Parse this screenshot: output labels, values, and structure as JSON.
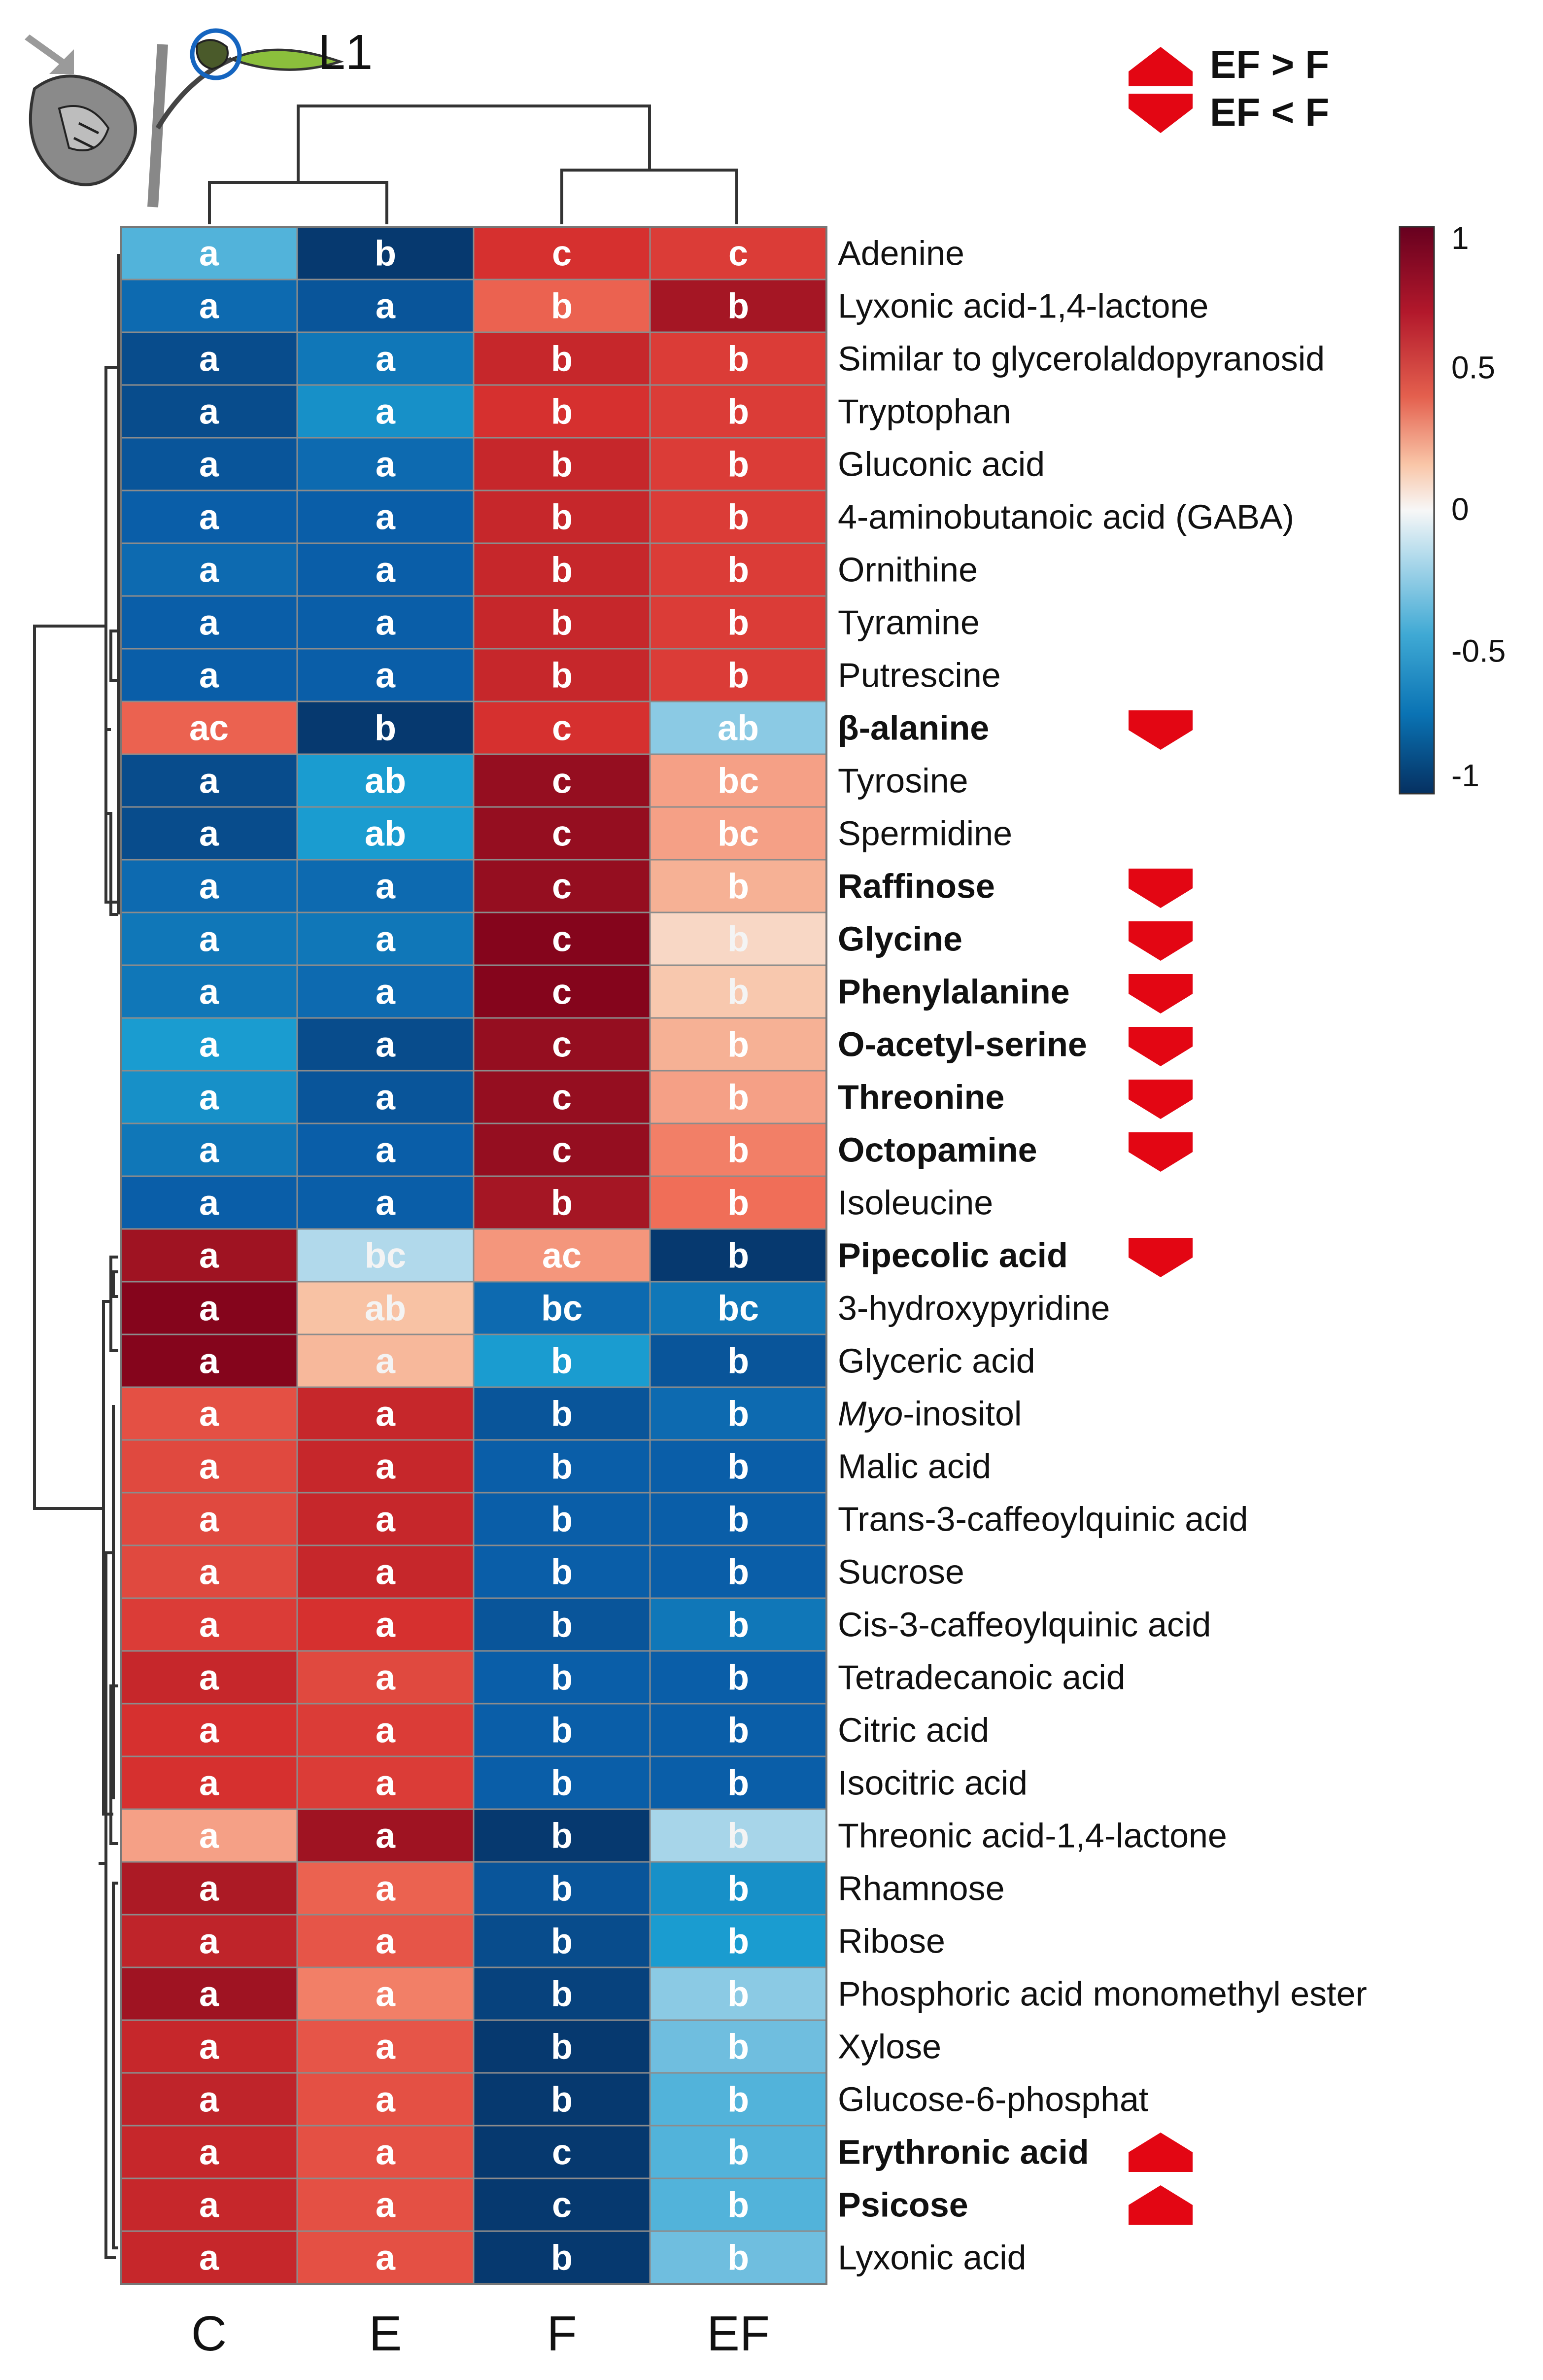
{
  "figure": {
    "panel_label": "L1",
    "icon": "plant-leaf-icon",
    "legend": [
      {
        "symbol": "up-arrow-icon",
        "label": "EF > F"
      },
      {
        "symbol": "down-arrow-icon",
        "label": "EF < F"
      }
    ]
  },
  "chart_data": {
    "type": "heatmap",
    "columns": [
      "C",
      "E",
      "F",
      "EF"
    ],
    "color_scale": {
      "min": -1,
      "max": 1,
      "ticks": [
        {
          "value": 1,
          "label": "1"
        },
        {
          "value": 0.5,
          "label": "0.5"
        },
        {
          "value": 0,
          "label": "0"
        },
        {
          "value": -0.5,
          "label": "-0.5"
        },
        {
          "value": -1,
          "label": "-1"
        }
      ],
      "low_color": "#053061",
      "mid_color": "#f7f7f7",
      "high_color": "#8b0a1e"
    },
    "rows": [
      {
        "name": "Adenine",
        "bold": false,
        "marker": "",
        "values": [
          -0.4,
          -0.95,
          0.75,
          0.7
        ],
        "letters": [
          "a",
          "b",
          "c",
          "c"
        ]
      },
      {
        "name": "Lyxonic acid-1,4-lactone",
        "bold": false,
        "marker": "",
        "values": [
          -0.7,
          -0.8,
          0.55,
          0.9
        ],
        "letters": [
          "a",
          "a",
          "b",
          "b"
        ]
      },
      {
        "name": "Similar to glycerolaldopyranosid",
        "bold": false,
        "marker": "",
        "values": [
          -0.85,
          -0.65,
          0.8,
          0.7
        ],
        "letters": [
          "a",
          "a",
          "b",
          "b"
        ]
      },
      {
        "name": "Tryptophan",
        "bold": false,
        "marker": "",
        "values": [
          -0.85,
          -0.55,
          0.75,
          0.7
        ],
        "letters": [
          "a",
          "a",
          "b",
          "b"
        ]
      },
      {
        "name": "Gluconic acid",
        "bold": false,
        "marker": "",
        "values": [
          -0.8,
          -0.7,
          0.8,
          0.7
        ],
        "letters": [
          "a",
          "a",
          "b",
          "b"
        ]
      },
      {
        "name": "4-aminobutanoic acid (GABA)",
        "bold": false,
        "marker": "",
        "values": [
          -0.75,
          -0.75,
          0.8,
          0.7
        ],
        "letters": [
          "a",
          "a",
          "b",
          "b"
        ]
      },
      {
        "name": "Ornithine",
        "bold": false,
        "marker": "",
        "values": [
          -0.7,
          -0.75,
          0.8,
          0.7
        ],
        "letters": [
          "a",
          "a",
          "b",
          "b"
        ]
      },
      {
        "name": "Tyramine",
        "bold": false,
        "marker": "",
        "values": [
          -0.75,
          -0.75,
          0.8,
          0.7
        ],
        "letters": [
          "a",
          "a",
          "b",
          "b"
        ]
      },
      {
        "name": "Putrescine",
        "bold": false,
        "marker": "",
        "values": [
          -0.75,
          -0.75,
          0.8,
          0.7
        ],
        "letters": [
          "a",
          "a",
          "b",
          "b"
        ]
      },
      {
        "name": "β-alanine",
        "bold": true,
        "marker": "down",
        "values": [
          0.55,
          -0.95,
          0.75,
          -0.3
        ],
        "letters": [
          "ac",
          "b",
          "c",
          "ab"
        ]
      },
      {
        "name": "Tyrosine",
        "bold": false,
        "marker": "",
        "values": [
          -0.85,
          -0.5,
          0.95,
          0.35
        ],
        "letters": [
          "a",
          "ab",
          "c",
          "bc"
        ]
      },
      {
        "name": "Spermidine",
        "bold": false,
        "marker": "",
        "values": [
          -0.85,
          -0.5,
          0.95,
          0.35
        ],
        "letters": [
          "a",
          "ab",
          "c",
          "bc"
        ]
      },
      {
        "name": "Raffinose",
        "bold": true,
        "marker": "down",
        "values": [
          -0.7,
          -0.7,
          0.95,
          0.3
        ],
        "letters": [
          "a",
          "a",
          "c",
          "b"
        ]
      },
      {
        "name": "Glycine",
        "bold": true,
        "marker": "down",
        "values": [
          -0.65,
          -0.65,
          1.0,
          0.15
        ],
        "letters": [
          "a",
          "a",
          "c",
          "b"
        ]
      },
      {
        "name": "Phenylalanine",
        "bold": true,
        "marker": "down",
        "values": [
          -0.65,
          -0.7,
          1.0,
          0.22
        ],
        "letters": [
          "a",
          "a",
          "c",
          "b"
        ]
      },
      {
        "name": "O-acetyl-serine",
        "bold": true,
        "marker": "down",
        "values": [
          -0.5,
          -0.85,
          0.95,
          0.3
        ],
        "letters": [
          "a",
          "a",
          "c",
          "b"
        ]
      },
      {
        "name": "Threonine",
        "bold": true,
        "marker": "down",
        "values": [
          -0.55,
          -0.8,
          0.95,
          0.35
        ],
        "letters": [
          "a",
          "a",
          "c",
          "b"
        ]
      },
      {
        "name": "Octopamine",
        "bold": true,
        "marker": "down",
        "values": [
          -0.65,
          -0.75,
          0.95,
          0.45
        ],
        "letters": [
          "a",
          "a",
          "c",
          "b"
        ]
      },
      {
        "name": "Isoleucine",
        "bold": false,
        "marker": "",
        "values": [
          -0.75,
          -0.75,
          0.9,
          0.5
        ],
        "letters": [
          "a",
          "a",
          "b",
          "b"
        ]
      },
      {
        "name": "Pipecolic acid",
        "bold": true,
        "marker": "down",
        "values": [
          0.92,
          -0.22,
          0.38,
          -0.95
        ],
        "letters": [
          "a",
          "bc",
          "ac",
          "b"
        ]
      },
      {
        "name": "3-hydroxypyridine",
        "bold": false,
        "marker": "",
        "values": [
          1.0,
          0.25,
          -0.7,
          -0.65
        ],
        "letters": [
          "a",
          "ab",
          "bc",
          "bc"
        ]
      },
      {
        "name": "Glyceric acid",
        "bold": false,
        "marker": "",
        "values": [
          1.0,
          0.28,
          -0.5,
          -0.8
        ],
        "letters": [
          "a",
          "a",
          "b",
          "b"
        ]
      },
      {
        "name": "Myo-inositol",
        "italic_prefix": "Myo",
        "italic_rest": "-inositol",
        "bold": false,
        "marker": "",
        "values": [
          0.62,
          0.8,
          -0.8,
          -0.7
        ],
        "letters": [
          "a",
          "a",
          "b",
          "b"
        ]
      },
      {
        "name": "Malic acid",
        "bold": false,
        "marker": "",
        "values": [
          0.65,
          0.8,
          -0.75,
          -0.75
        ],
        "letters": [
          "a",
          "a",
          "b",
          "b"
        ]
      },
      {
        "name": "Trans-3-caffeoylquinic acid",
        "bold": false,
        "marker": "",
        "values": [
          0.65,
          0.8,
          -0.75,
          -0.75
        ],
        "letters": [
          "a",
          "a",
          "b",
          "b"
        ]
      },
      {
        "name": "Sucrose",
        "bold": false,
        "marker": "",
        "values": [
          0.65,
          0.8,
          -0.75,
          -0.75
        ],
        "letters": [
          "a",
          "a",
          "b",
          "b"
        ]
      },
      {
        "name": "Cis-3-caffeoylquinic acid",
        "bold": false,
        "marker": "",
        "values": [
          0.7,
          0.75,
          -0.8,
          -0.65
        ],
        "letters": [
          "a",
          "a",
          "b",
          "b"
        ]
      },
      {
        "name": "Tetradecanoic acid",
        "bold": false,
        "marker": "",
        "values": [
          0.8,
          0.65,
          -0.75,
          -0.75
        ],
        "letters": [
          "a",
          "a",
          "b",
          "b"
        ]
      },
      {
        "name": "Citric acid",
        "bold": false,
        "marker": "",
        "values": [
          0.75,
          0.7,
          -0.75,
          -0.75
        ],
        "letters": [
          "a",
          "a",
          "b",
          "b"
        ]
      },
      {
        "name": "Isocitric acid",
        "bold": false,
        "marker": "",
        "values": [
          0.75,
          0.7,
          -0.75,
          -0.75
        ],
        "letters": [
          "a",
          "a",
          "b",
          "b"
        ]
      },
      {
        "name": "Threonic acid-1,4-lactone",
        "bold": false,
        "marker": "",
        "values": [
          0.35,
          0.92,
          -0.95,
          -0.25
        ],
        "letters": [
          "a",
          "a",
          "b",
          "b"
        ]
      },
      {
        "name": "Rhamnose",
        "bold": false,
        "marker": "",
        "values": [
          0.88,
          0.55,
          -0.8,
          -0.55
        ],
        "letters": [
          "a",
          "a",
          "b",
          "b"
        ]
      },
      {
        "name": "Ribose",
        "bold": false,
        "marker": "",
        "values": [
          0.82,
          0.6,
          -0.85,
          -0.5
        ],
        "letters": [
          "a",
          "a",
          "b",
          "b"
        ]
      },
      {
        "name": "Phosphoric acid monomethyl ester",
        "bold": false,
        "marker": "",
        "values": [
          0.92,
          0.45,
          -0.9,
          -0.3
        ],
        "letters": [
          "a",
          "a",
          "b",
          "b"
        ]
      },
      {
        "name": "Xylose",
        "bold": false,
        "marker": "",
        "values": [
          0.8,
          0.6,
          -0.95,
          -0.35
        ],
        "letters": [
          "a",
          "a",
          "b",
          "b"
        ]
      },
      {
        "name": "Glucose-6-phosphat",
        "bold": false,
        "marker": "",
        "values": [
          0.82,
          0.62,
          -0.95,
          -0.4
        ],
        "letters": [
          "a",
          "a",
          "b",
          "b"
        ]
      },
      {
        "name": "Erythronic acid",
        "bold": true,
        "marker": "up",
        "values": [
          0.8,
          0.62,
          -0.95,
          -0.4
        ],
        "letters": [
          "a",
          "a",
          "c",
          "b"
        ]
      },
      {
        "name": "Psicose",
        "bold": true,
        "marker": "up",
        "values": [
          0.8,
          0.62,
          -0.95,
          -0.4
        ],
        "letters": [
          "a",
          "a",
          "c",
          "b"
        ]
      },
      {
        "name": "Lyxonic acid",
        "bold": false,
        "marker": "",
        "values": [
          0.8,
          0.62,
          -0.95,
          -0.35
        ],
        "letters": [
          "a",
          "a",
          "b",
          "b"
        ]
      }
    ]
  }
}
